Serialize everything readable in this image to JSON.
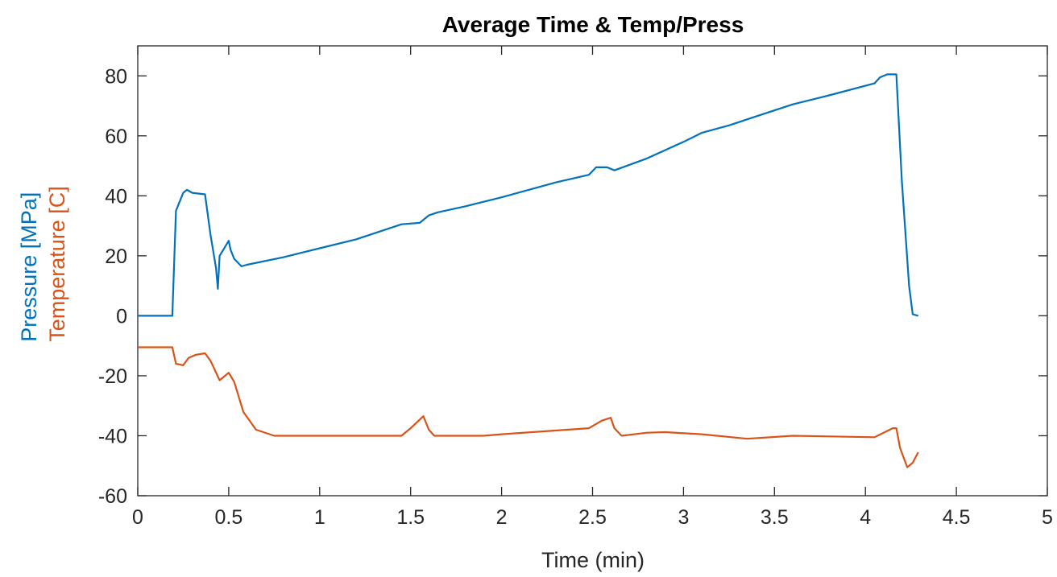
{
  "chart_data": {
    "type": "line",
    "title": "Average Time & Temp/Press",
    "xlabel": "Time (min)",
    "ylabel_parts": [
      {
        "text": "Pressure [MPa]",
        "color": "#0072BD"
      },
      {
        "text": "Temperature [C]",
        "color": "#D95319"
      }
    ],
    "xlim": [
      0,
      5
    ],
    "ylim": [
      -60,
      90
    ],
    "x_ticks": [
      0,
      0.5,
      1,
      1.5,
      2,
      2.5,
      3,
      3.5,
      4,
      4.5,
      5
    ],
    "x_tick_labels": [
      "0",
      "0.5",
      "1",
      "1.5",
      "2",
      "2.5",
      "3",
      "3.5",
      "4",
      "4.5",
      "5"
    ],
    "y_ticks": [
      -60,
      -40,
      -20,
      0,
      20,
      40,
      60,
      80
    ],
    "y_tick_labels": [
      "-60",
      "-40",
      "-20",
      "0",
      "20",
      "40",
      "60",
      "80"
    ],
    "grid": false,
    "series": [
      {
        "color": "#0072BD",
        "points": [
          [
            0,
            0
          ],
          [
            0.19,
            0
          ],
          [
            0.21,
            35
          ],
          [
            0.25,
            41
          ],
          [
            0.27,
            42
          ],
          [
            0.3,
            41
          ],
          [
            0.37,
            40.5
          ],
          [
            0.4,
            27
          ],
          [
            0.43,
            16
          ],
          [
            0.44,
            9
          ],
          [
            0.45,
            20
          ],
          [
            0.5,
            25
          ],
          [
            0.51,
            22
          ],
          [
            0.53,
            19
          ],
          [
            0.57,
            16.5
          ],
          [
            0.6,
            17
          ],
          [
            0.8,
            19.5
          ],
          [
            1.0,
            22.5
          ],
          [
            1.2,
            25.5
          ],
          [
            1.45,
            30.5
          ],
          [
            1.55,
            31
          ],
          [
            1.6,
            33.5
          ],
          [
            1.65,
            34.5
          ],
          [
            1.8,
            36.5
          ],
          [
            2.0,
            39.5
          ],
          [
            2.3,
            44.5
          ],
          [
            2.48,
            47
          ],
          [
            2.52,
            49.5
          ],
          [
            2.58,
            49.5
          ],
          [
            2.62,
            48.5
          ],
          [
            2.8,
            52.5
          ],
          [
            3.0,
            58
          ],
          [
            3.1,
            61
          ],
          [
            3.25,
            63.5
          ],
          [
            3.4,
            66.5
          ],
          [
            3.6,
            70.5
          ],
          [
            3.8,
            73.5
          ],
          [
            4.05,
            77.5
          ],
          [
            4.08,
            79.5
          ],
          [
            4.12,
            80.5
          ],
          [
            4.17,
            80.5
          ],
          [
            4.2,
            45
          ],
          [
            4.24,
            10
          ],
          [
            4.26,
            0.5
          ],
          [
            4.29,
            0
          ]
        ]
      },
      {
        "color": "#D95319",
        "points": [
          [
            0,
            -10.5
          ],
          [
            0.19,
            -10.5
          ],
          [
            0.21,
            -16
          ],
          [
            0.25,
            -16.5
          ],
          [
            0.28,
            -14
          ],
          [
            0.32,
            -13
          ],
          [
            0.37,
            -12.5
          ],
          [
            0.4,
            -15
          ],
          [
            0.45,
            -21.5
          ],
          [
            0.48,
            -20
          ],
          [
            0.5,
            -19
          ],
          [
            0.53,
            -22
          ],
          [
            0.58,
            -32
          ],
          [
            0.65,
            -38
          ],
          [
            0.75,
            -40
          ],
          [
            1.0,
            -40
          ],
          [
            1.45,
            -40
          ],
          [
            1.5,
            -37.5
          ],
          [
            1.57,
            -33.5
          ],
          [
            1.6,
            -38
          ],
          [
            1.63,
            -40
          ],
          [
            1.9,
            -40
          ],
          [
            2.0,
            -39.5
          ],
          [
            2.48,
            -37.5
          ],
          [
            2.55,
            -35
          ],
          [
            2.6,
            -34
          ],
          [
            2.62,
            -37.5
          ],
          [
            2.66,
            -40
          ],
          [
            2.8,
            -39
          ],
          [
            2.9,
            -38.8
          ],
          [
            3.1,
            -39.5
          ],
          [
            3.35,
            -41
          ],
          [
            3.6,
            -40
          ],
          [
            4.05,
            -40.5
          ],
          [
            4.15,
            -37.5
          ],
          [
            4.17,
            -37.5
          ],
          [
            4.19,
            -44
          ],
          [
            4.23,
            -50.5
          ],
          [
            4.26,
            -49
          ],
          [
            4.29,
            -45.5
          ]
        ]
      }
    ]
  }
}
